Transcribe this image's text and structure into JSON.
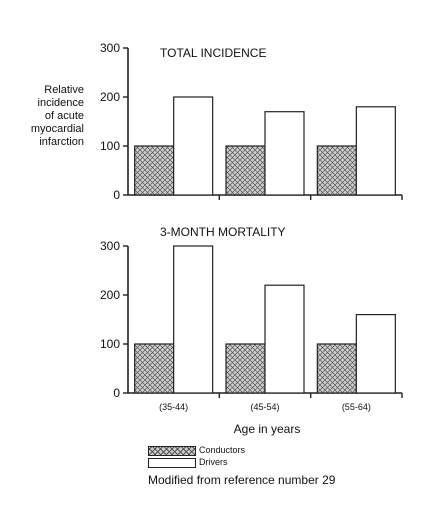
{
  "chart_data": [
    {
      "type": "bar",
      "title": "TOTAL INCIDENCE",
      "ylabel": "Relative\nincidence\nof acute\nmyocardial\ninfarction",
      "ylim": [
        0,
        300
      ],
      "yticks": [
        0,
        100,
        200,
        300
      ],
      "categories": [
        "(35-44)",
        "(45-54)",
        "(55-64)"
      ],
      "show_category_labels": false,
      "series": [
        {
          "name": "Conductors",
          "values": [
            100,
            100,
            100
          ]
        },
        {
          "name": "Drivers",
          "values": [
            200,
            170,
            180
          ]
        }
      ]
    },
    {
      "type": "bar",
      "title": "3-MONTH MORTALITY",
      "ylabel": "",
      "xlabel": "Age in years",
      "ylim": [
        0,
        300
      ],
      "yticks": [
        0,
        100,
        200,
        300
      ],
      "categories": [
        "(35-44)",
        "(45-54)",
        "(55-64)"
      ],
      "show_category_labels": true,
      "series": [
        {
          "name": "Conductors",
          "values": [
            100,
            100,
            100
          ]
        },
        {
          "name": "Drivers",
          "values": [
            300,
            220,
            160
          ]
        }
      ]
    }
  ],
  "legend": {
    "placement": "bottom",
    "items": [
      {
        "label": "Conductors",
        "fill": "pattern"
      },
      {
        "label": "Drivers",
        "fill": "#ffffff"
      }
    ]
  },
  "source_note": "Modified from reference number 29",
  "colors": {
    "conductor_fill": "#cfcfcf",
    "conductor_mesh": "#555555",
    "driver_fill": "#ffffff",
    "ink": "#222222"
  }
}
